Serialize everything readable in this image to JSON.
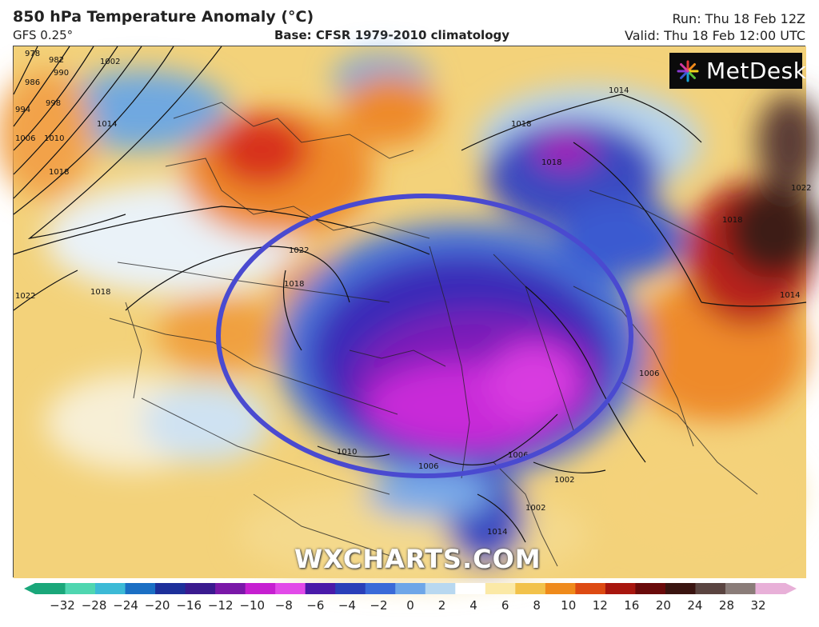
{
  "header": {
    "title": "850 hPa Temperature Anomaly (°C)",
    "model": "GFS 0.25°",
    "base": "Base: CFSR 1979-2010 climatology",
    "run": "Run: Thu 18 Feb 12Z",
    "valid": "Valid: Thu 18 Feb 12:00 UTC"
  },
  "logo": {
    "text": "MetDesk",
    "icon": "metdesk-burst-icon"
  },
  "watermark": "WXCHARTS.COM",
  "annotation": {
    "shape": "ellipse",
    "color": "#4a4ad0"
  },
  "isobars": {
    "labels": [
      "978",
      "982",
      "986",
      "990",
      "994",
      "998",
      "1002",
      "1006",
      "1010",
      "1014",
      "1018",
      "1022",
      "1018",
      "1022",
      "1018",
      "1014",
      "1018",
      "1018",
      "1014",
      "1006",
      "1002",
      "1006",
      "1006",
      "1010",
      "1002",
      "1014",
      "1022",
      "1018"
    ]
  },
  "colorbar": {
    "ticks": [
      "−32",
      "−28",
      "−24",
      "−20",
      "−16",
      "−12",
      "−10",
      "−8",
      "−6",
      "−4",
      "−2",
      "0",
      "2",
      "4",
      "6",
      "8",
      "10",
      "12",
      "16",
      "20",
      "24",
      "28",
      "32"
    ],
    "colors": [
      "#1aa77a",
      "#4fd6b0",
      "#3cbad6",
      "#1b6fc4",
      "#1d2f9a",
      "#3a1a8f",
      "#7a18a8",
      "#c61fd0",
      "#e24ae8",
      "#4a1aa8",
      "#2a3fb8",
      "#3a6ad8",
      "#6ea6e8",
      "#b8d8f0",
      "#ffffff",
      "#fbe9a6",
      "#f2c24a",
      "#ef8a1a",
      "#dd4a12",
      "#a8160e",
      "#6a0a0a",
      "#3a1410",
      "#5a4440",
      "#8a7c78",
      "#e8b0d8"
    ]
  }
}
